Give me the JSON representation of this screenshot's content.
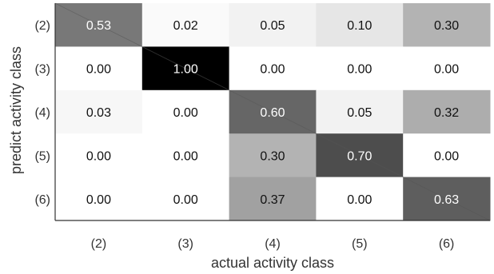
{
  "chart_data": {
    "type": "heatmap",
    "xlabel": "actual activity class",
    "ylabel": "predict activity class",
    "x_categories": [
      "(2)",
      "(3)",
      "(4)",
      "(5)",
      "(6)"
    ],
    "y_categories": [
      "(2)",
      "(3)",
      "(4)",
      "(5)",
      "(6)"
    ],
    "values": [
      [
        0.53,
        0.02,
        0.05,
        0.1,
        0.3
      ],
      [
        0.0,
        1.0,
        0.0,
        0.0,
        0.0
      ],
      [
        0.03,
        0.0,
        0.6,
        0.05,
        0.32
      ],
      [
        0.0,
        0.0,
        0.3,
        0.7,
        0.0
      ],
      [
        0.0,
        0.0,
        0.37,
        0.0,
        0.63
      ]
    ],
    "value_labels": [
      [
        "0.53",
        "0.02",
        "0.05",
        "0.10",
        "0.30"
      ],
      [
        "0.00",
        "1.00",
        "0.00",
        "0.00",
        "0.00"
      ],
      [
        "0.03",
        "0.00",
        "0.60",
        "0.05",
        "0.32"
      ],
      [
        "0.00",
        "0.00",
        "0.30",
        "0.70",
        "0.00"
      ],
      [
        "0.00",
        "0.00",
        "0.37",
        "0.00",
        "0.63"
      ]
    ],
    "colormap": "grayscale (0 = white, 1 = black)",
    "vmin": 0,
    "vmax": 1,
    "diagonal_line": true,
    "colors": {
      "low": "#ffffff",
      "high": "#000000",
      "text_dark": "#111111",
      "text_light": "#ffffff",
      "axis": "#333333"
    }
  }
}
